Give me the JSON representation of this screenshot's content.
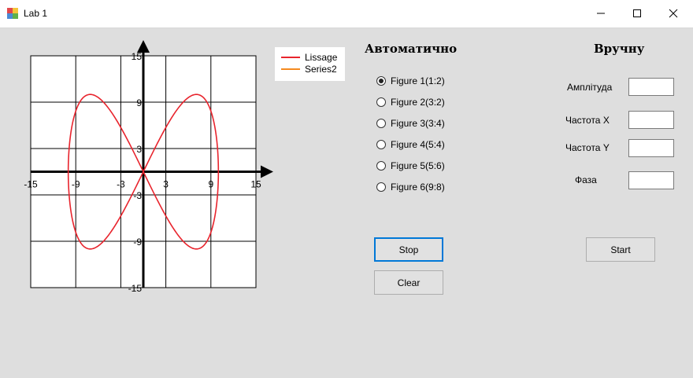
{
  "window": {
    "title": "Lab 1"
  },
  "chart_data": {
    "type": "line",
    "title": "",
    "xlabel": "",
    "ylabel": "",
    "xlim": [
      -15,
      15
    ],
    "ylim": [
      -15,
      15
    ],
    "x_ticks": [
      "-15",
      "-9",
      "-3",
      "3",
      "9",
      "15"
    ],
    "y_ticks": [
      "15",
      "9",
      "3",
      "-3",
      "-9",
      "-15"
    ],
    "grid": true,
    "legend_position": "top-right",
    "series": [
      {
        "name": "Lissage",
        "color": "#e8242d",
        "amplitude": 10,
        "freq_x": 1,
        "freq_y": 2,
        "phase": 0
      },
      {
        "name": "Series2",
        "color": "#f58a1f"
      }
    ]
  },
  "auto": {
    "heading": "Автоматично",
    "options": [
      {
        "label": "Figure 1(1:2)",
        "checked": true
      },
      {
        "label": "Figure 2(3:2)",
        "checked": false
      },
      {
        "label": "Figure 3(3:4)",
        "checked": false
      },
      {
        "label": "Figure 4(5:4)",
        "checked": false
      },
      {
        "label": "Figure 5(5:6)",
        "checked": false
      },
      {
        "label": "Figure 6(9:8)",
        "checked": false
      }
    ],
    "stop_label": "Stop",
    "clear_label": "Clear"
  },
  "manual": {
    "heading": "Вручну",
    "amplitude_label": "Амплітуда",
    "freq_x_label": "Частота X",
    "freq_y_label": "Частота Y",
    "phase_label": "Фаза",
    "amplitude_value": "",
    "freq_x_value": "",
    "freq_y_value": "",
    "phase_value": "",
    "start_label": "Start"
  }
}
